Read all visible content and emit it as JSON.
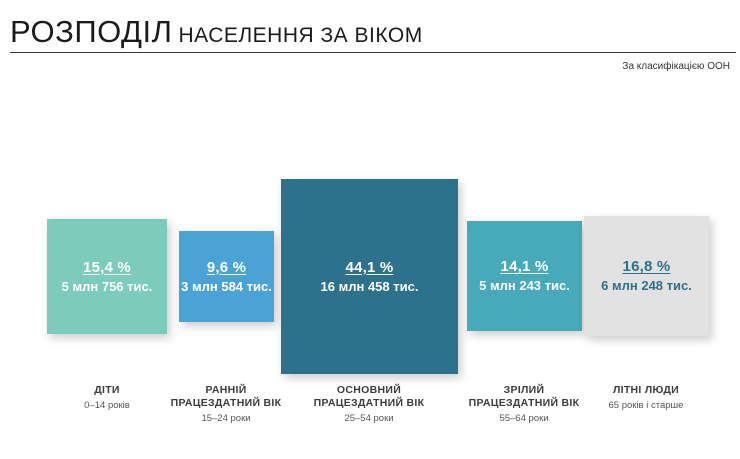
{
  "header": {
    "title_big": "РОЗПОДІЛ",
    "title_small": "НАСЕЛЕННЯ ЗА ВІКОМ",
    "source": "За класифікацією ООН"
  },
  "colors": {
    "children": "#7dcbbd",
    "early_working": "#4ba3d5",
    "core_working": "#2e718c",
    "mature_working": "#48a9ba",
    "elderly": "#e2e2e2",
    "light_text": "#ffffff",
    "dark_text": "#2e6f8e"
  },
  "chart_data": {
    "type": "bar",
    "title": "РОЗПОДІЛ НАСЕЛЕННЯ ЗА ВІКОМ",
    "categories": [
      "ДІТИ",
      "РАННІЙ ПРАЦЕЗДАТНИЙ ВІК",
      "ОСНОВНИЙ ПРАЦЕЗДАТНИЙ ВІК",
      "ЗРІЛИЙ ПРАЦЕЗДАТНИЙ ВІК",
      "ЛІТНІ ЛЮДИ"
    ],
    "values": [
      15.4,
      9.6,
      44.1,
      14.1,
      16.8
    ],
    "groups": [
      {
        "pct": "15,4 %",
        "count": "5 млн 756 тис.",
        "name_lines": [
          "ДІТИ"
        ],
        "range": "0–14 років",
        "color_key": "children",
        "text_color_key": "light_text"
      },
      {
        "pct": "9,6 %",
        "count": "3 млн 584 тис.",
        "name_lines": [
          "РАННІЙ",
          "ПРАЦЕЗДАТНИЙ ВІК"
        ],
        "range": "15–24 роки",
        "color_key": "early_working",
        "text_color_key": "light_text"
      },
      {
        "pct": "44,1 %",
        "count": "16 млн 458 тис.",
        "name_lines": [
          "ОСНОВНИЙ",
          "ПРАЦЕЗДАТНИЙ ВІК"
        ],
        "range": "25–54 роки",
        "color_key": "core_working",
        "text_color_key": "light_text"
      },
      {
        "pct": "14,1 %",
        "count": "5 млн 243 тис.",
        "name_lines": [
          "ЗРІЛИЙ",
          "ПРАЦЕЗДАТНИЙ ВІК"
        ],
        "range": "55–64 роки",
        "color_key": "mature_working",
        "text_color_key": "light_text"
      },
      {
        "pct": "16,8 %",
        "count": "6 млн 248 тис.",
        "name_lines": [
          "ЛІТНІ ЛЮДИ"
        ],
        "range": "65 років і старше",
        "color_key": "elderly",
        "text_color_key": "dark_text"
      }
    ]
  }
}
